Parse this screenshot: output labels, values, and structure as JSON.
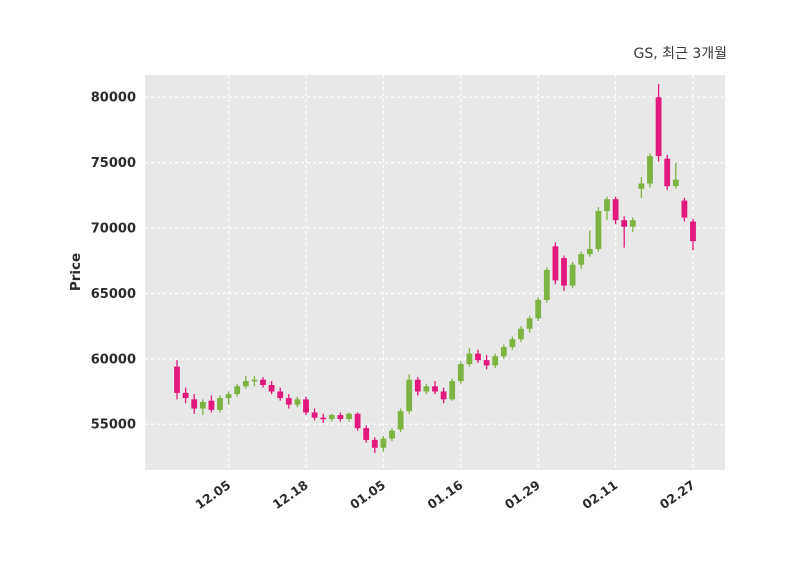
{
  "header": {
    "title": "GS, 최근 3개월"
  },
  "chart_data": {
    "type": "candlestick",
    "title": "GS, 최근 3개월",
    "xlabel": "",
    "ylabel": "Price",
    "ohlc_order": [
      "open",
      "high",
      "low",
      "close"
    ],
    "yticks": [
      55000,
      60000,
      65000,
      70000,
      75000,
      80000
    ],
    "ylim": [
      51500,
      81700
    ],
    "grid": "dashed-white-both-axes",
    "legend": "none",
    "colors": {
      "up": "#7cb342",
      "down": "#e2187d",
      "plot_bg": "#e8e8e8",
      "grid": "#ffffff",
      "text": "#2b2b2b",
      "title_text": "#3a3a3a"
    },
    "xticks": [
      {
        "label": "12.05",
        "index": 6
      },
      {
        "label": "12.18",
        "index": 15
      },
      {
        "label": "01.05",
        "index": 24
      },
      {
        "label": "01.16",
        "index": 33
      },
      {
        "label": "01.29",
        "index": 42
      },
      {
        "label": "02.11",
        "index": 51
      },
      {
        "label": "02.27",
        "index": 60
      }
    ],
    "candles": [
      [
        59400,
        59900,
        56900,
        57400
      ],
      [
        57400,
        57800,
        56600,
        57000
      ],
      [
        56900,
        57300,
        55800,
        56200
      ],
      [
        56200,
        56900,
        55700,
        56700
      ],
      [
        56800,
        57200,
        55900,
        56100
      ],
      [
        56100,
        57200,
        55900,
        57000
      ],
      [
        57000,
        57500,
        56500,
        57300
      ],
      [
        57300,
        58100,
        57100,
        57900
      ],
      [
        57900,
        58700,
        57700,
        58300
      ],
      [
        58300,
        58700,
        57900,
        58400
      ],
      [
        58400,
        58600,
        57800,
        58000
      ],
      [
        58000,
        58300,
        57300,
        57500
      ],
      [
        57500,
        57800,
        56800,
        57000
      ],
      [
        57000,
        57300,
        56200,
        56500
      ],
      [
        56500,
        57100,
        56300,
        56900
      ],
      [
        56900,
        57100,
        55700,
        55900
      ],
      [
        55900,
        56200,
        55300,
        55500
      ],
      [
        55500,
        55800,
        55100,
        55400
      ],
      [
        55400,
        55800,
        55200,
        55700
      ],
      [
        55700,
        55900,
        55200,
        55400
      ],
      [
        55400,
        55900,
        55200,
        55800
      ],
      [
        55800,
        55900,
        54500,
        54700
      ],
      [
        54700,
        54900,
        53600,
        53800
      ],
      [
        53800,
        54000,
        52800,
        53200
      ],
      [
        53200,
        54100,
        52900,
        53900
      ],
      [
        53900,
        54700,
        53700,
        54500
      ],
      [
        54600,
        56200,
        54400,
        56000
      ],
      [
        56000,
        58800,
        55800,
        58400
      ],
      [
        58400,
        58600,
        57200,
        57500
      ],
      [
        57500,
        58100,
        57300,
        57900
      ],
      [
        57900,
        58300,
        57300,
        57500
      ],
      [
        57500,
        57800,
        56600,
        56900
      ],
      [
        56900,
        58500,
        56800,
        58300
      ],
      [
        58300,
        59800,
        58100,
        59600
      ],
      [
        59600,
        60800,
        59400,
        60400
      ],
      [
        60400,
        60700,
        59700,
        59900
      ],
      [
        59900,
        60300,
        59200,
        59500
      ],
      [
        59500,
        60400,
        59300,
        60200
      ],
      [
        60200,
        61100,
        60000,
        60900
      ],
      [
        60900,
        61700,
        60700,
        61500
      ],
      [
        61500,
        62500,
        61300,
        62300
      ],
      [
        62300,
        63300,
        62000,
        63100
      ],
      [
        63100,
        64700,
        62900,
        64500
      ],
      [
        64500,
        67000,
        64300,
        66800
      ],
      [
        68600,
        68900,
        65700,
        66000
      ],
      [
        67700,
        67900,
        65200,
        65600
      ],
      [
        65600,
        67400,
        65400,
        67200
      ],
      [
        67200,
        68200,
        66900,
        68000
      ],
      [
        68000,
        69800,
        67800,
        68400
      ],
      [
        68400,
        71600,
        68200,
        71300
      ],
      [
        71300,
        72400,
        70600,
        72200
      ],
      [
        72200,
        72400,
        70300,
        70600
      ],
      [
        70600,
        70900,
        68500,
        70100
      ],
      [
        70100,
        70800,
        69700,
        70600
      ],
      [
        73000,
        73900,
        72300,
        73400
      ],
      [
        73400,
        75700,
        73100,
        75500
      ],
      [
        80000,
        81000,
        75100,
        75500
      ],
      [
        75300,
        75600,
        72900,
        73200
      ],
      [
        73200,
        75000,
        73000,
        73700
      ],
      [
        72100,
        72300,
        70500,
        70800
      ],
      [
        70500,
        70700,
        68300,
        69000
      ]
    ]
  }
}
